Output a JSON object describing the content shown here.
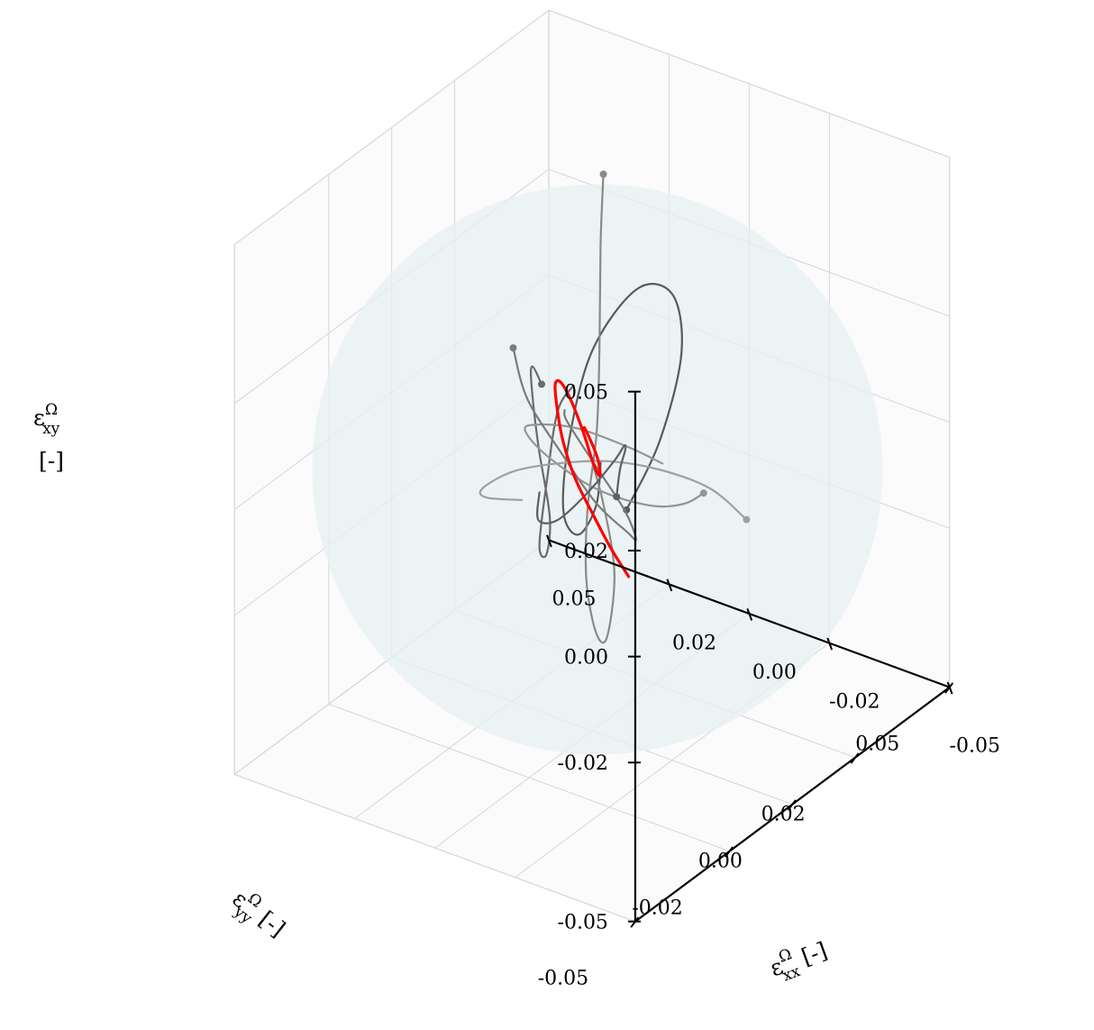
{
  "chart_data": {
    "type": "line",
    "projection": "3d",
    "axes": {
      "x": {
        "symbol": "ε",
        "superscript": "Ω",
        "subscript": "xx",
        "unit": "[-]",
        "ticks": [
          -0.05,
          -0.02,
          0.0,
          0.02,
          0.05
        ],
        "tick_labels": [
          "-0.05",
          "-0.02",
          "0.00",
          "0.02",
          "0.05"
        ],
        "range": [
          -0.05,
          0.05
        ]
      },
      "y": {
        "symbol": "ε",
        "superscript": "Ω",
        "subscript": "yy",
        "unit": "[-]",
        "ticks": [
          -0.05,
          -0.02,
          0.0,
          0.02,
          0.05
        ],
        "tick_labels": [
          "-0.05",
          "-0.02",
          "0.00",
          "0.02",
          "0.05"
        ],
        "range": [
          -0.05,
          0.05
        ]
      },
      "z": {
        "symbol": "ε",
        "superscript": "Ω",
        "subscript": "xy",
        "unit": "[-]",
        "ticks": [
          -0.05,
          -0.02,
          0.0,
          0.02,
          0.05
        ],
        "tick_labels": [
          "-0.05",
          "-0.02",
          "0.00",
          "0.02",
          "0.05"
        ],
        "range": [
          -0.05,
          0.05
        ]
      }
    },
    "grid": true,
    "sphere": {
      "center": [
        0,
        0,
        0
      ],
      "radius": 0.05,
      "color": "#e7f0f2"
    },
    "series": [
      {
        "color": "#ff0000",
        "highlight": true,
        "points": [
          [
            -0.006,
            0.004,
            -0.021
          ],
          [
            -0.004,
            0.001,
            -0.015
          ],
          [
            -0.002,
            -0.002,
            -0.008
          ],
          [
            0.001,
            -0.004,
            -0.001
          ],
          [
            0.004,
            -0.004,
            0.005
          ],
          [
            0.007,
            -0.002,
            0.009
          ],
          [
            0.01,
            0.001,
            0.012
          ],
          [
            0.011,
            0.004,
            0.011
          ],
          [
            0.01,
            0.006,
            0.007
          ],
          [
            0.007,
            0.006,
            0.002
          ],
          [
            0.004,
            0.005,
            -0.002
          ],
          [
            0.001,
            0.003,
            -0.003
          ],
          [
            -0.002,
            0.0,
            -0.001
          ],
          [
            -0.003,
            -0.002,
            0.003
          ],
          [
            -0.003,
            -0.004,
            0.007
          ],
          [
            -0.002,
            -0.005,
            0.01
          ]
        ]
      },
      {
        "color": "#5a5a5a",
        "start": true,
        "points": [
          [
            -0.018,
            -0.012,
            0.002
          ],
          [
            -0.02,
            -0.004,
            0.012
          ],
          [
            -0.016,
            0.008,
            0.022
          ],
          [
            -0.006,
            0.018,
            0.026
          ],
          [
            0.006,
            0.022,
            0.022
          ],
          [
            0.014,
            0.018,
            0.01
          ],
          [
            0.012,
            0.008,
            -0.002
          ],
          [
            0.004,
            -0.004,
            -0.008
          ],
          [
            -0.006,
            -0.012,
            -0.006
          ],
          [
            -0.012,
            -0.014,
            0.002
          ],
          [
            -0.01,
            -0.01,
            0.008
          ]
        ]
      },
      {
        "color": "#8a8a8a",
        "start": true,
        "points": [
          [
            0.016,
            0.024,
            0.04
          ],
          [
            0.012,
            0.018,
            0.03
          ],
          [
            0.006,
            0.01,
            0.016
          ],
          [
            0.002,
            0.004,
            0.004
          ],
          [
            -0.002,
            -0.004,
            -0.006
          ],
          [
            -0.008,
            -0.012,
            -0.014
          ],
          [
            -0.012,
            -0.014,
            -0.022
          ],
          [
            -0.01,
            -0.008,
            -0.026
          ],
          [
            -0.004,
            0.002,
            -0.02
          ],
          [
            0.002,
            0.006,
            -0.01
          ],
          [
            0.004,
            0.004,
            0.0
          ]
        ]
      },
      {
        "color": "#6a6a6a",
        "start": true,
        "points": [
          [
            0.022,
            0.012,
            0.004
          ],
          [
            0.018,
            0.004,
            0.012
          ],
          [
            0.012,
            -0.004,
            0.014
          ],
          [
            0.004,
            -0.012,
            0.008
          ],
          [
            -0.002,
            -0.016,
            -0.002
          ],
          [
            0.002,
            -0.012,
            -0.012
          ],
          [
            0.01,
            -0.004,
            -0.016
          ],
          [
            0.016,
            0.006,
            -0.01
          ],
          [
            0.018,
            0.012,
            0.0
          ],
          [
            0.014,
            0.012,
            0.006
          ]
        ]
      },
      {
        "color": "#959595",
        "start": true,
        "points": [
          [
            -0.02,
            0.01,
            -0.004
          ],
          [
            -0.012,
            0.014,
            -0.01
          ],
          [
            -0.002,
            0.016,
            -0.014
          ],
          [
            0.008,
            0.012,
            -0.012
          ],
          [
            0.014,
            0.004,
            -0.004
          ],
          [
            0.012,
            -0.006,
            0.006
          ],
          [
            0.004,
            -0.012,
            0.012
          ],
          [
            -0.006,
            -0.012,
            0.014
          ],
          [
            -0.014,
            -0.006,
            0.01
          ],
          [
            -0.016,
            0.002,
            0.004
          ]
        ]
      },
      {
        "color": "#7b7b7b",
        "start": true,
        "points": [
          [
            0.004,
            -0.02,
            0.03
          ],
          [
            0.002,
            -0.018,
            0.02
          ],
          [
            -0.002,
            -0.012,
            0.008
          ],
          [
            -0.004,
            -0.004,
            -0.004
          ],
          [
            -0.004,
            0.006,
            -0.014
          ],
          [
            0.0,
            0.014,
            -0.02
          ],
          [
            0.006,
            0.018,
            -0.018
          ],
          [
            0.012,
            0.016,
            -0.01
          ],
          [
            0.014,
            0.01,
            0.0
          ],
          [
            0.01,
            0.004,
            0.006
          ]
        ]
      },
      {
        "color": "#a0a0a0",
        "start": true,
        "points": [
          [
            -0.026,
            0.016,
            -0.01
          ],
          [
            -0.02,
            0.012,
            -0.004
          ],
          [
            -0.012,
            0.006,
            0.0
          ],
          [
            -0.004,
            0.0,
            0.002
          ],
          [
            0.004,
            -0.006,
            0.002
          ],
          [
            0.012,
            -0.01,
            0.0
          ],
          [
            0.018,
            -0.012,
            -0.004
          ],
          [
            0.02,
            -0.008,
            -0.008
          ],
          [
            0.016,
            -0.002,
            -0.01
          ]
        ]
      },
      {
        "color": "#606060",
        "start": true,
        "points": [
          [
            0.008,
            0.018,
            -0.016
          ],
          [
            0.004,
            0.014,
            -0.008
          ],
          [
            -0.002,
            0.008,
            0.0
          ],
          [
            -0.008,
            0.0,
            0.006
          ],
          [
            -0.012,
            -0.008,
            0.008
          ],
          [
            -0.01,
            -0.014,
            0.004
          ],
          [
            -0.004,
            -0.016,
            -0.002
          ],
          [
            0.004,
            -0.012,
            -0.006
          ],
          [
            0.01,
            -0.004,
            -0.006
          ]
        ]
      }
    ]
  }
}
